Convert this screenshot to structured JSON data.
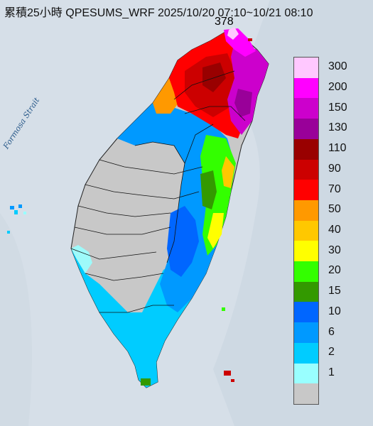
{
  "title": "累積25小時 QPESUMS_WRF 2025/10/20 07:10~10/21 08:10",
  "max_value": "378",
  "sea_label": "Formosa Strait",
  "legend": [
    {
      "label": "300",
      "color": "#ffc8ff"
    },
    {
      "label": "200",
      "color": "#ff00ff"
    },
    {
      "label": "150",
      "color": "#cc00cc"
    },
    {
      "label": "130",
      "color": "#990099"
    },
    {
      "label": "110",
      "color": "#990000"
    },
    {
      "label": "90",
      "color": "#cc0000"
    },
    {
      "label": "70",
      "color": "#ff0000"
    },
    {
      "label": "50",
      "color": "#ff9900"
    },
    {
      "label": "40",
      "color": "#ffc800"
    },
    {
      "label": "30",
      "color": "#ffff00"
    },
    {
      "label": "20",
      "color": "#33ff00"
    },
    {
      "label": "15",
      "color": "#339900"
    },
    {
      "label": "10",
      "color": "#0066ff"
    },
    {
      "label": "6",
      "color": "#0099ff"
    },
    {
      "label": "2",
      "color": "#00ccff"
    },
    {
      "label": "1",
      "color": "#99ffff"
    },
    {
      "label": "",
      "color": "#c8c8c8"
    }
  ]
}
